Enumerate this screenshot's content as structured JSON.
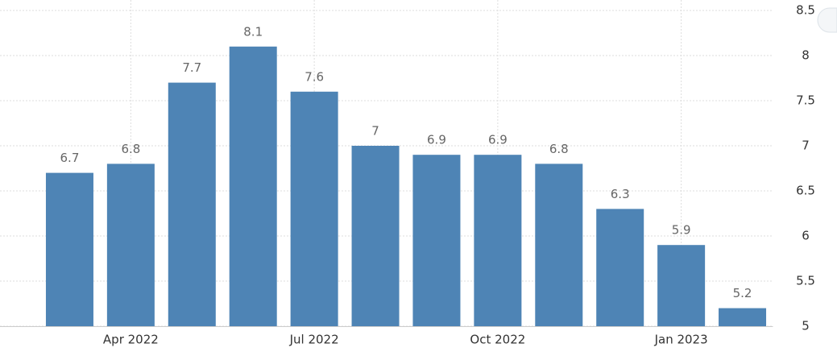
{
  "chart_data": {
    "type": "bar",
    "categories": [
      null,
      "Apr 2022",
      null,
      null,
      "Jul 2022",
      null,
      null,
      "Oct 2022",
      null,
      null,
      "Jan 2023",
      null
    ],
    "values": [
      6.7,
      6.8,
      7.7,
      8.1,
      7.6,
      7,
      6.9,
      6.9,
      6.8,
      6.3,
      5.9,
      5.2
    ],
    "color": "#4e84b5",
    "ylim": [
      5,
      8.5
    ],
    "yticks": [
      5,
      5.5,
      6,
      6.5,
      7,
      7.5,
      8,
      8.5
    ],
    "grid": true
  }
}
